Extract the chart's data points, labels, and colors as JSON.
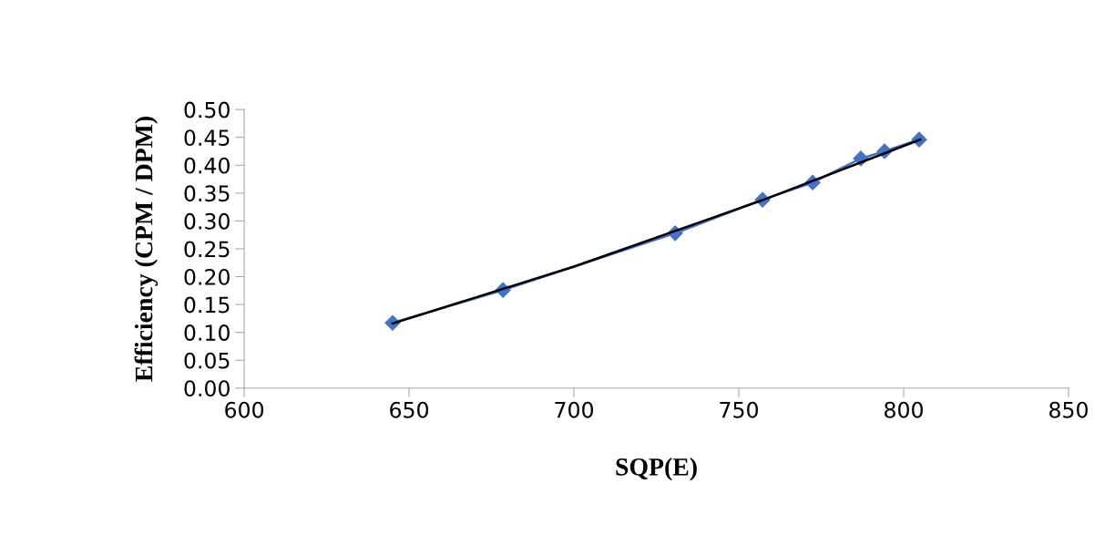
{
  "chart_data": {
    "type": "line",
    "xlabel": "SQP(E)",
    "ylabel": "Efficiency (CPM / DPM)",
    "xlim": [
      600,
      850
    ],
    "xticks": [
      600,
      650,
      700,
      750,
      800,
      850
    ],
    "ylim": [
      0,
      0.5
    ],
    "yticks": [
      {
        "value": 0,
        "label": "0.00"
      },
      {
        "value": 0.05,
        "label": "0.05"
      },
      {
        "value": 0.1,
        "label": "0.10"
      },
      {
        "value": 0.15,
        "label": "0.15"
      },
      {
        "value": 0.2,
        "label": "0.20"
      },
      {
        "value": 0.25,
        "label": "0.25"
      },
      {
        "value": 0.3,
        "label": "0.30"
      },
      {
        "value": 0.35,
        "label": "0.35"
      },
      {
        "value": 0.4,
        "label": "0.40"
      },
      {
        "value": 0.45,
        "label": "0.45"
      },
      {
        "value": 0.5,
        "label": "0.50"
      }
    ],
    "grid": false,
    "legend": false,
    "series": [
      {
        "color": "#4472c4",
        "marker": "diamond",
        "x": [
          645,
          678.5,
          730.7,
          757.2,
          772.4,
          787,
          794.2,
          804.7
        ],
        "values": [
          0.117,
          0.176,
          0.278,
          0.338,
          0.369,
          0.412,
          0.425,
          0.446
        ]
      },
      {
        "color": "#000000",
        "marker": "none",
        "x": [
          645,
          700,
          757,
          805
        ],
        "values": [
          0.116,
          0.218,
          0.337,
          0.446
        ]
      }
    ]
  }
}
